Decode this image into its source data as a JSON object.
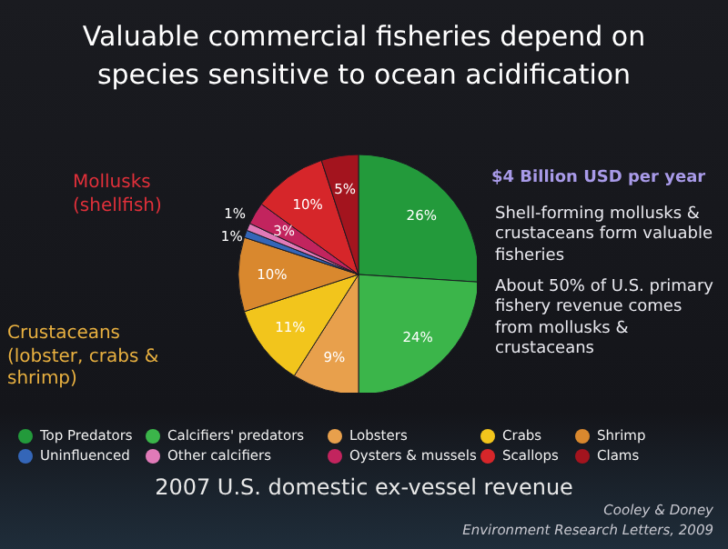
{
  "chart_data": {
    "type": "pie",
    "title": "Valuable commercial fisheries depend on species sensitive to ocean acidification",
    "subtitle": "2007 U.S. domestic ex-vessel revenue",
    "categories": [
      "Top Predators",
      "Calcifiers' predators",
      "Lobsters",
      "Crabs",
      "Shrimp",
      "Uninfluenced",
      "Other calcifiers",
      "Oysters & mussels",
      "Scallops",
      "Clams"
    ],
    "values": [
      26,
      24,
      9,
      11,
      10,
      1,
      1,
      3,
      10,
      5
    ],
    "value_labels": [
      "26%",
      "24%",
      "9%",
      "11%",
      "10%",
      "1%",
      "1%",
      "3%",
      "10%",
      "5%"
    ],
    "colors": [
      "#239a3b",
      "#3bb54a",
      "#e8a04c",
      "#f2c51c",
      "#d9882e",
      "#3466b8",
      "#e07ab8",
      "#c2245e",
      "#d6262a",
      "#a3141e"
    ],
    "legend": "bottom",
    "annotations": [
      "Mollusks (shellfish)",
      "Crustaceans (lobster, crabs & shrimp)",
      "$4 Billion USD per year",
      "Shell-forming mollusks & crustaceans form valuable fisheries",
      "About 50% of U.S. primary fishery revenue comes from mollusks & crustaceans",
      "Cooley & Doney",
      "Environment Research Letters, 2009"
    ]
  }
}
